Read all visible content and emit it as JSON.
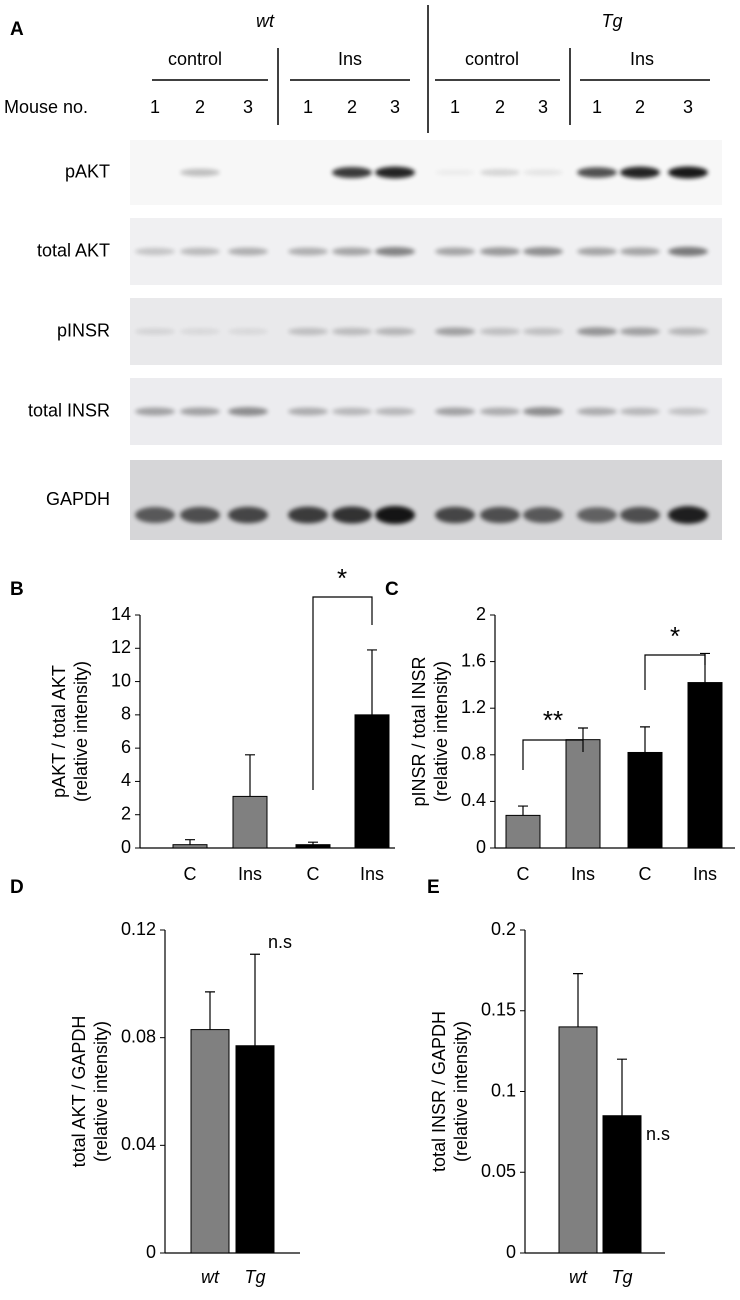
{
  "blot": {
    "panel_label": "A",
    "genotypes": [
      "wt",
      "Tg"
    ],
    "groups": [
      "control",
      "Ins",
      "control",
      "Ins"
    ],
    "mouse_label": "Mouse no.",
    "lanes": [
      "1",
      "2",
      "3",
      "1",
      "2",
      "3",
      "1",
      "2",
      "3",
      "1",
      "2",
      "3"
    ],
    "rows": [
      "pAKT",
      "total AKT",
      "pINSR",
      "total INSR",
      "GAPDH"
    ]
  },
  "chart_data": [
    {
      "type": "bar",
      "panel_label": "B",
      "y_label": [
        "pAKT / total AKT",
        "(relative intensity)"
      ],
      "categories": [
        "C",
        "Ins",
        "C",
        "Ins"
      ],
      "values": [
        0.2,
        3.1,
        0.2,
        8.0
      ],
      "errors": [
        0.3,
        2.5,
        0.15,
        3.9
      ],
      "colors": [
        "#808080",
        "#808080",
        "#000000",
        "#000000"
      ],
      "ylim": [
        0,
        14
      ],
      "yticks": [
        0,
        2,
        4,
        6,
        8,
        10,
        12,
        14
      ],
      "annotations": [
        "*"
      ]
    },
    {
      "type": "bar",
      "panel_label": "C",
      "y_label": [
        "pINSR / total INSR",
        "(relative intensity)"
      ],
      "categories": [
        "C",
        "Ins",
        "C",
        "Ins"
      ],
      "values": [
        0.28,
        0.93,
        0.82,
        1.42
      ],
      "errors": [
        0.08,
        0.1,
        0.22,
        0.25
      ],
      "colors": [
        "#808080",
        "#808080",
        "#000000",
        "#000000"
      ],
      "ylim": [
        0,
        2
      ],
      "yticks": [
        0,
        0.4,
        0.8,
        1.2,
        1.6,
        2
      ],
      "annotations": [
        "**",
        "*"
      ]
    },
    {
      "type": "bar",
      "panel_label": "D",
      "y_label": [
        "total AKT / GAPDH",
        "(relative intensity)"
      ],
      "categories": [
        "wt",
        "Tg"
      ],
      "values": [
        0.083,
        0.077
      ],
      "errors": [
        0.014,
        0.034
      ],
      "colors": [
        "#808080",
        "#000000"
      ],
      "ylim": [
        0,
        0.12
      ],
      "yticks": [
        0,
        0.04,
        0.08,
        0.12
      ],
      "annotations": [
        "n.s"
      ]
    },
    {
      "type": "bar",
      "panel_label": "E",
      "y_label": [
        "total INSR / GAPDH",
        "(relative intensity)"
      ],
      "categories": [
        "wt",
        "Tg"
      ],
      "values": [
        0.14,
        0.085
      ],
      "errors": [
        0.033,
        0.035
      ],
      "colors": [
        "#808080",
        "#000000"
      ],
      "ylim": [
        0,
        0.2
      ],
      "yticks": [
        0,
        0.05,
        0.1,
        0.15,
        0.2
      ],
      "annotations": [
        "n.s"
      ]
    }
  ]
}
